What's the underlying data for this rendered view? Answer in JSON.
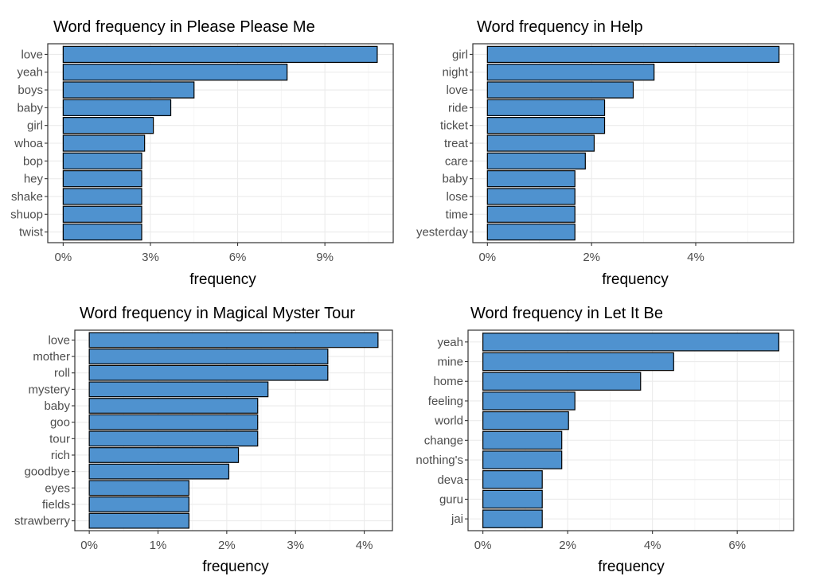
{
  "chart_data": [
    {
      "type": "bar",
      "orientation": "horizontal",
      "title": "Word frequency in Please Please Me",
      "xlabel": "frequency",
      "ylabel": "",
      "categories": [
        "love",
        "yeah",
        "boys",
        "baby",
        "girl",
        "whoa",
        "bop",
        "hey",
        "shake",
        "shuop",
        "twist"
      ],
      "values": [
        0.108,
        0.077,
        0.045,
        0.037,
        0.031,
        0.028,
        0.027,
        0.027,
        0.027,
        0.027,
        0.027
      ],
      "xlim": [
        -0.0053,
        0.1135
      ],
      "xticks": [
        0,
        0.03,
        0.06,
        0.09
      ],
      "xtick_labels": [
        "0%",
        "3%",
        "6%",
        "9%"
      ],
      "bar_color": "#4F92CF",
      "grid": true
    },
    {
      "type": "bar",
      "orientation": "horizontal",
      "title": "Word frequency in Help",
      "xlabel": "frequency",
      "ylabel": "",
      "categories": [
        "girl",
        "night",
        "love",
        "ride",
        "ticket",
        "treat",
        "care",
        "baby",
        "lose",
        "time",
        "yesterday"
      ],
      "values": [
        0.056,
        0.032,
        0.028,
        0.0225,
        0.0225,
        0.0205,
        0.0188,
        0.0168,
        0.0168,
        0.0168,
        0.0168
      ],
      "xlim": [
        -0.0028,
        0.0588
      ],
      "xticks": [
        0,
        0.02,
        0.04
      ],
      "xtick_labels": [
        "0%",
        "2%",
        "4%"
      ],
      "bar_color": "#4F92CF",
      "grid": true
    },
    {
      "type": "bar",
      "orientation": "horizontal",
      "title": "Word frequency in Magical Myster Tour",
      "xlabel": "frequency",
      "ylabel": "",
      "categories": [
        "love",
        "mother",
        "roll",
        "mystery",
        "baby",
        "goo",
        "tour",
        "rich",
        "goodbye",
        "eyes",
        "fields",
        "strawberry"
      ],
      "values": [
        0.042,
        0.0347,
        0.0347,
        0.026,
        0.0245,
        0.0245,
        0.0245,
        0.0217,
        0.0203,
        0.0145,
        0.0145,
        0.0145
      ],
      "xlim": [
        -0.0021,
        0.0441
      ],
      "xticks": [
        0,
        0.01,
        0.02,
        0.03,
        0.04
      ],
      "xtick_labels": [
        "0%",
        "1%",
        "2%",
        "3%",
        "4%"
      ],
      "bar_color": "#4F92CF",
      "grid": true
    },
    {
      "type": "bar",
      "orientation": "horizontal",
      "title": "Word frequency in Let It Be",
      "xlabel": "frequency",
      "ylabel": "",
      "categories": [
        "yeah",
        "mine",
        "home",
        "feeling",
        "world",
        "change",
        "nothing's",
        "deva",
        "guru",
        "jai"
      ],
      "values": [
        0.0698,
        0.045,
        0.0372,
        0.0217,
        0.0202,
        0.0186,
        0.0186,
        0.014,
        0.014,
        0.014
      ],
      "xlim": [
        -0.0035,
        0.0733
      ],
      "xticks": [
        0,
        0.02,
        0.04,
        0.06
      ],
      "xtick_labels": [
        "0%",
        "2%",
        "4%",
        "6%"
      ],
      "bar_color": "#4F92CF",
      "grid": true
    }
  ]
}
